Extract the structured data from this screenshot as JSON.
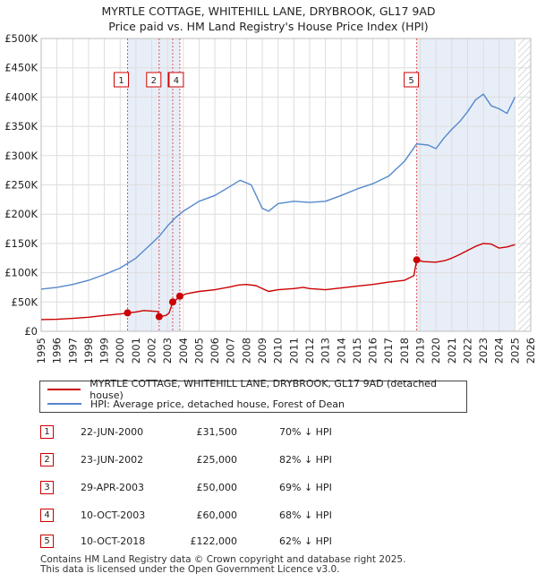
{
  "title": {
    "line1": "MYRTLE COTTAGE, WHITEHILL LANE, DRYBROOK, GL17 9AD",
    "line2": "Price paid vs. HM Land Registry's House Price Index (HPI)"
  },
  "colors": {
    "property": "#cc0000",
    "hpi": "#5588cc",
    "shade": "#e8eef8",
    "grid": "#dddddd"
  },
  "chart_data": {
    "type": "line",
    "title": "Price paid vs. HM Land Registry's House Price Index (HPI)",
    "xlim": [
      1995,
      2026
    ],
    "ylim": [
      0,
      500000
    ],
    "x_ticks": [
      "1995",
      "1996",
      "1997",
      "1998",
      "1999",
      "2000",
      "2001",
      "2002",
      "2003",
      "2004",
      "2005",
      "2006",
      "2007",
      "2008",
      "2009",
      "2010",
      "2011",
      "2012",
      "2013",
      "2014",
      "2015",
      "2016",
      "2017",
      "2018",
      "2019",
      "2020",
      "2021",
      "2022",
      "2023",
      "2024",
      "2025",
      "2026"
    ],
    "y_ticks": [
      {
        "value": 0,
        "label": "£0"
      },
      {
        "value": 50000,
        "label": "£50K"
      },
      {
        "value": 100000,
        "label": "£100K"
      },
      {
        "value": 150000,
        "label": "£150K"
      },
      {
        "value": 200000,
        "label": "£200K"
      },
      {
        "value": 250000,
        "label": "£250K"
      },
      {
        "value": 300000,
        "label": "£300K"
      },
      {
        "value": 350000,
        "label": "£350K"
      },
      {
        "value": 400000,
        "label": "£400K"
      },
      {
        "value": 450000,
        "label": "£450K"
      },
      {
        "value": 500000,
        "label": "£500K"
      }
    ],
    "grid": true,
    "shaded_ranges": [
      [
        2000.47,
        2003.78
      ],
      [
        2018.78,
        2025.0
      ]
    ],
    "future_hatch_from": 2025.2,
    "series": [
      {
        "name": "MYRTLE COTTAGE, WHITEHILL LANE, DRYBROOK, GL17 9AD (detached house)",
        "color": "#cc0000",
        "points": [
          [
            1995.0,
            20000
          ],
          [
            1996.0,
            20500
          ],
          [
            1997.0,
            22000
          ],
          [
            1998.0,
            24000
          ],
          [
            1999.0,
            27000
          ],
          [
            2000.0,
            29500
          ],
          [
            2000.47,
            31500
          ],
          [
            2001.0,
            33000
          ],
          [
            2001.5,
            35500
          ],
          [
            2002.0,
            34500
          ],
          [
            2002.4,
            33800
          ],
          [
            2002.47,
            25000
          ],
          [
            2002.9,
            27000
          ],
          [
            2003.1,
            31000
          ],
          [
            2003.33,
            50000
          ],
          [
            2003.6,
            55000
          ],
          [
            2003.78,
            60000
          ],
          [
            2004.2,
            64000
          ],
          [
            2005.0,
            68000
          ],
          [
            2006.0,
            71000
          ],
          [
            2007.0,
            76000
          ],
          [
            2007.5,
            79000
          ],
          [
            2008.0,
            80000
          ],
          [
            2008.6,
            78000
          ],
          [
            2009.0,
            73000
          ],
          [
            2009.4,
            68000
          ],
          [
            2010.0,
            71000
          ],
          [
            2011.0,
            73000
          ],
          [
            2011.6,
            75000
          ],
          [
            2012.0,
            73000
          ],
          [
            2013.0,
            71000
          ],
          [
            2014.0,
            74000
          ],
          [
            2015.0,
            77000
          ],
          [
            2016.0,
            80000
          ],
          [
            2017.0,
            84000
          ],
          [
            2018.0,
            87000
          ],
          [
            2018.6,
            95000
          ],
          [
            2018.78,
            122000
          ],
          [
            2019.2,
            119000
          ],
          [
            2020.0,
            118000
          ],
          [
            2020.6,
            121000
          ],
          [
            2021.0,
            125000
          ],
          [
            2021.5,
            131000
          ],
          [
            2022.0,
            138000
          ],
          [
            2022.5,
            145000
          ],
          [
            2023.0,
            150000
          ],
          [
            2023.5,
            149000
          ],
          [
            2024.0,
            142000
          ],
          [
            2024.5,
            144000
          ],
          [
            2025.0,
            148000
          ]
        ]
      },
      {
        "name": "HPI: Average price, detached house, Forest of Dean",
        "color": "#5588cc",
        "points": [
          [
            1995.0,
            72000
          ],
          [
            1996.0,
            75000
          ],
          [
            1997.0,
            80000
          ],
          [
            1998.0,
            87000
          ],
          [
            1999.0,
            97000
          ],
          [
            2000.0,
            108000
          ],
          [
            2001.0,
            125000
          ],
          [
            2002.0,
            150000
          ],
          [
            2002.5,
            163000
          ],
          [
            2003.0,
            180000
          ],
          [
            2003.5,
            194000
          ],
          [
            2004.0,
            205000
          ],
          [
            2005.0,
            222000
          ],
          [
            2006.0,
            232000
          ],
          [
            2007.0,
            248000
          ],
          [
            2007.6,
            258000
          ],
          [
            2008.3,
            250000
          ],
          [
            2009.0,
            210000
          ],
          [
            2009.4,
            205000
          ],
          [
            2010.0,
            218000
          ],
          [
            2011.0,
            222000
          ],
          [
            2012.0,
            220000
          ],
          [
            2013.0,
            222000
          ],
          [
            2014.0,
            232000
          ],
          [
            2015.0,
            243000
          ],
          [
            2016.0,
            252000
          ],
          [
            2017.0,
            265000
          ],
          [
            2018.0,
            290000
          ],
          [
            2018.78,
            320000
          ],
          [
            2019.5,
            318000
          ],
          [
            2020.0,
            312000
          ],
          [
            2020.5,
            330000
          ],
          [
            2021.0,
            345000
          ],
          [
            2021.5,
            358000
          ],
          [
            2022.0,
            375000
          ],
          [
            2022.5,
            395000
          ],
          [
            2023.0,
            405000
          ],
          [
            2023.5,
            385000
          ],
          [
            2024.0,
            380000
          ],
          [
            2024.5,
            372000
          ],
          [
            2025.0,
            400000
          ]
        ]
      }
    ],
    "sales": [
      {
        "label": "1",
        "x": 2000.47,
        "y": 31500
      },
      {
        "label": "2",
        "x": 2002.47,
        "y": 25000
      },
      {
        "label": "3",
        "x": 2003.33,
        "y": 50000
      },
      {
        "label": "4",
        "x": 2003.78,
        "y": 60000
      },
      {
        "label": "5",
        "x": 2018.78,
        "y": 122000
      }
    ]
  },
  "legend": {
    "property": "MYRTLE COTTAGE, WHITEHILL LANE, DRYBROOK, GL17 9AD (detached house)",
    "hpi": "HPI: Average price, detached house, Forest of Dean"
  },
  "transactions": [
    {
      "num": "1",
      "date": "22-JUN-2000",
      "price": "£31,500",
      "hpi": "70% ↓ HPI"
    },
    {
      "num": "2",
      "date": "23-JUN-2002",
      "price": "£25,000",
      "hpi": "82% ↓ HPI"
    },
    {
      "num": "3",
      "date": "29-APR-2003",
      "price": "£50,000",
      "hpi": "69% ↓ HPI"
    },
    {
      "num": "4",
      "date": "10-OCT-2003",
      "price": "£60,000",
      "hpi": "68% ↓ HPI"
    },
    {
      "num": "5",
      "date": "10-OCT-2018",
      "price": "£122,000",
      "hpi": "62% ↓ HPI"
    }
  ],
  "footer": {
    "line1": "Contains HM Land Registry data © Crown copyright and database right 2025.",
    "line2": "This data is licensed under the Open Government Licence v3.0."
  }
}
